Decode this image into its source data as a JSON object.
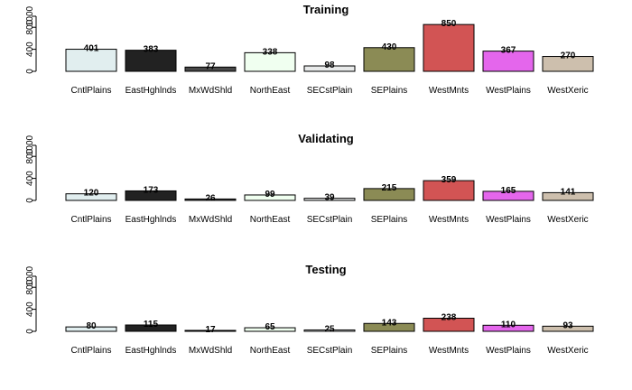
{
  "chart_data": [
    {
      "type": "bar",
      "title": "Training",
      "categories": [
        "CntlPlains",
        "EastHghlnds",
        "MxWdShld",
        "NorthEast",
        "SECstPlain",
        "SEPlains",
        "WestMnts",
        "WestPlains",
        "WestXeric"
      ],
      "values": [
        401,
        383,
        77,
        338,
        98,
        430,
        850,
        367,
        270
      ],
      "ylim": [
        0,
        1000
      ],
      "yticks": [
        0,
        400,
        800,
        1000
      ]
    },
    {
      "type": "bar",
      "title": "Validating",
      "categories": [
        "CntlPlains",
        "EastHghlnds",
        "MxWdShld",
        "NorthEast",
        "SECstPlain",
        "SEPlains",
        "WestMnts",
        "WestPlains",
        "WestXeric"
      ],
      "values": [
        120,
        173,
        26,
        99,
        39,
        215,
        359,
        165,
        141
      ],
      "ylim": [
        0,
        1000
      ],
      "yticks": [
        0,
        400,
        800,
        1000
      ]
    },
    {
      "type": "bar",
      "title": "Testing",
      "categories": [
        "CntlPlains",
        "EastHghlnds",
        "MxWdShld",
        "NorthEast",
        "SECstPlain",
        "SEPlains",
        "WestMnts",
        "WestPlains",
        "WestXeric"
      ],
      "values": [
        80,
        115,
        17,
        65,
        25,
        143,
        238,
        110,
        93
      ],
      "ylim": [
        0,
        1000
      ],
      "yticks": [
        0,
        400,
        800,
        1000
      ]
    }
  ],
  "colors": [
    "#e1eeef",
    "#222222",
    "#474747",
    "#f0fff0",
    "#e8eaea",
    "#8b8b55",
    "#d25454",
    "#e466ec",
    "#cdbfad"
  ]
}
